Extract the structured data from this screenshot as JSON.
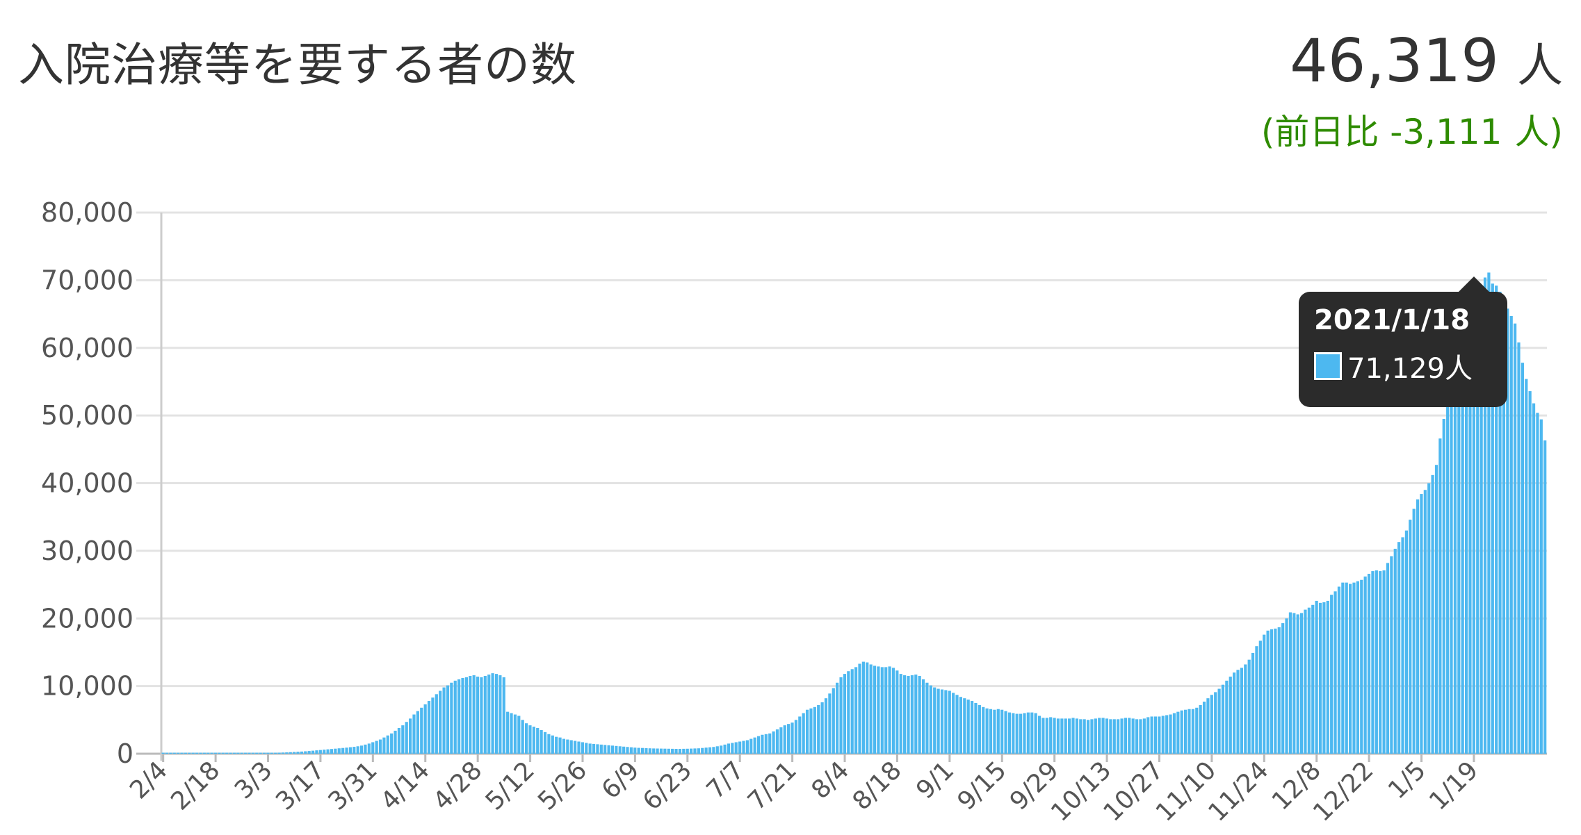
{
  "header": {
    "title": "入院治療等を要する者の数",
    "total_value": "46,319",
    "total_unit": "人",
    "delta_prefix": "(前日比",
    "delta_value": "-3,111",
    "delta_suffix": "人)"
  },
  "tooltip": {
    "date": "2021/1/18",
    "value_text": "71,129人"
  },
  "colors": {
    "bar": "#4db8f0",
    "grid": "#e3e3e3",
    "delta": "#2e8b00",
    "tooltip_bg": "#2b2b2b"
  },
  "chart_data": {
    "type": "bar",
    "title": "",
    "xlabel": "",
    "ylabel": "",
    "ylim": [
      0,
      80000
    ],
    "y_ticks": [
      "0",
      "10,000",
      "20,000",
      "30,000",
      "40,000",
      "50,000",
      "60,000",
      "70,000",
      "80,000"
    ],
    "y_tick_values": [
      0,
      10000,
      20000,
      30000,
      40000,
      50000,
      60000,
      70000,
      80000
    ],
    "x_tick_labels": [
      "2/4",
      "2/18",
      "3/3",
      "3/17",
      "3/31",
      "4/14",
      "4/28",
      "5/12",
      "5/26",
      "6/9",
      "6/23",
      "7/7",
      "7/21",
      "8/4",
      "8/18",
      "9/1",
      "9/15",
      "9/29",
      "10/13",
      "10/27",
      "11/10",
      "11/24",
      "12/8",
      "12/22",
      "1/5",
      "1/19"
    ],
    "tick_interval_days": 14,
    "grid": true,
    "legend": "none",
    "series": [
      {
        "values": [
          0,
          0,
          0,
          0,
          0,
          0,
          0,
          0,
          0,
          0,
          0,
          0,
          0,
          0,
          0,
          0,
          0,
          0,
          0,
          50,
          50,
          50,
          50,
          50,
          60,
          60,
          70,
          80,
          100,
          120,
          140,
          160,
          180,
          200,
          230,
          260,
          290,
          320,
          360,
          400,
          450,
          500,
          550,
          600,
          650,
          700,
          750,
          800,
          850,
          900,
          960,
          1020,
          1100,
          1200,
          1350,
          1500,
          1700,
          1900,
          2100,
          2400,
          2700,
          3000,
          3400,
          3800,
          4200,
          4700,
          5200,
          5800,
          6300,
          6800,
          7300,
          7800,
          8300,
          8800,
          9300,
          9800,
          10100,
          10500,
          10800,
          11000,
          11200,
          11300,
          11500,
          11600,
          11400,
          11300,
          11500,
          11700,
          11900,
          11800,
          11600,
          11300,
          6200,
          6000,
          5800,
          5600,
          5000,
          4500,
          4200,
          4000,
          3800,
          3500,
          3200,
          2900,
          2700,
          2500,
          2400,
          2200,
          2100,
          2000,
          1900,
          1800,
          1700,
          1600,
          1500,
          1450,
          1400,
          1350,
          1300,
          1250,
          1200,
          1150,
          1100,
          1050,
          1000,
          950,
          900,
          870,
          850,
          820,
          800,
          780,
          770,
          760,
          750,
          740,
          730,
          720,
          720,
          730,
          740,
          760,
          780,
          800,
          850,
          900,
          950,
          1000,
          1100,
          1200,
          1350,
          1500,
          1600,
          1700,
          1800,
          1900,
          2000,
          2200,
          2400,
          2600,
          2800,
          2900,
          3000,
          3300,
          3600,
          3900,
          4200,
          4400,
          4600,
          5000,
          5500,
          6000,
          6500,
          6700,
          6900,
          7200,
          7600,
          8200,
          8900,
          9700,
          10500,
          11300,
          11800,
          12200,
          12500,
          12800,
          13300,
          13600,
          13500,
          13200,
          13000,
          12900,
          12800,
          12800,
          12900,
          12700,
          12300,
          11800,
          11600,
          11500,
          11600,
          11700,
          11500,
          11000,
          10500,
          10100,
          9800,
          9600,
          9500,
          9400,
          9300,
          9000,
          8700,
          8400,
          8200,
          8000,
          7800,
          7500,
          7200,
          6900,
          6700,
          6600,
          6500,
          6600,
          6500,
          6300,
          6100,
          6000,
          5900,
          5900,
          6000,
          6100,
          6100,
          6000,
          5600,
          5300,
          5300,
          5400,
          5300,
          5200,
          5200,
          5200,
          5200,
          5300,
          5200,
          5100,
          5100,
          5000,
          5100,
          5200,
          5300,
          5300,
          5200,
          5100,
          5100,
          5100,
          5200,
          5300,
          5300,
          5200,
          5100,
          5100,
          5200,
          5400,
          5500,
          5500,
          5500,
          5600,
          5700,
          5800,
          6000,
          6200,
          6400,
          6500,
          6600,
          6600,
          6800,
          7200,
          7700,
          8200,
          8700,
          9100,
          9600,
          10200,
          10800,
          11400,
          12000,
          12400,
          12700,
          13200,
          13900,
          14900,
          15900,
          16700,
          17600,
          18200,
          18400,
          18500,
          18700,
          19300,
          20000,
          20900,
          20800,
          20600,
          20800,
          21300,
          21600,
          22000,
          22600,
          22300,
          22400,
          22600,
          23500,
          24000,
          24700,
          25300,
          25300,
          25100,
          25300,
          25500,
          25700,
          26200,
          26600,
          27000,
          27100,
          27000,
          27100,
          28200,
          29200,
          30300,
          31300,
          32000,
          33000,
          34600,
          36200,
          37600,
          38400,
          39000,
          40000,
          41200,
          42700,
          46600,
          49500,
          52500,
          55200,
          57700,
          60000,
          62800,
          64800,
          66400,
          67600,
          68300,
          68900,
          70400,
          71129,
          69500,
          69200,
          68300,
          66800,
          65800,
          64700,
          63600,
          60800,
          57800,
          55400,
          53600,
          51800,
          50400,
          49430,
          46319
        ]
      }
    ]
  }
}
